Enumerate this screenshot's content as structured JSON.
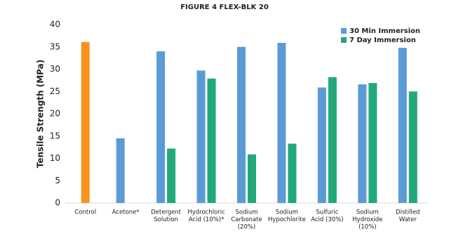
{
  "chart_data": {
    "type": "bar",
    "title": "FIGURE 4 FLEX-BLK 20",
    "ylabel": "Tensile Strength (MPa)",
    "categories": [
      [
        "Control"
      ],
      [
        "Acetone*"
      ],
      [
        "Detergent",
        "Solution"
      ],
      [
        "Hydrochloric",
        "Acid (10%)*"
      ],
      [
        "Sodium",
        "Carbonate",
        "(20%)"
      ],
      [
        "Sodium",
        "Hypochlorite"
      ],
      [
        "Sulfuric",
        "Acid (30%)"
      ],
      [
        "Sodium",
        "Hydroxide",
        "(10%)"
      ],
      [
        "Distilled",
        "Water"
      ]
    ],
    "control": {
      "value": 36.1,
      "color": "#f7941d"
    },
    "series": [
      {
        "name": "30 Min Immersion",
        "color": "#5b9bd5",
        "values": [
          null,
          14.5,
          34.0,
          29.7,
          35.0,
          35.9,
          25.9,
          26.6,
          34.8
        ]
      },
      {
        "name": "7 Day Immersion",
        "color": "#21a97a",
        "values": [
          null,
          null,
          12.2,
          27.9,
          10.9,
          13.3,
          28.2,
          26.9,
          25.0
        ]
      }
    ],
    "ylim": [
      0,
      40
    ],
    "yticks": [
      0,
      5,
      10,
      15,
      20,
      25,
      30,
      35,
      40
    ],
    "grid": false,
    "legend": "top-right"
  }
}
